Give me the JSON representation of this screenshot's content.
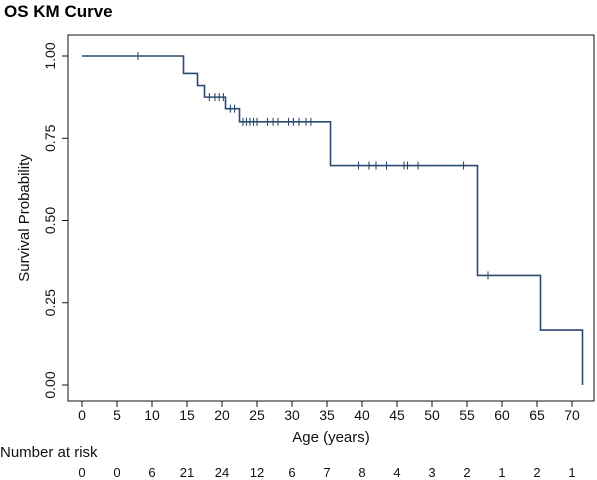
{
  "chart_data": {
    "type": "line",
    "title": "OS KM Curve",
    "xlabel": "Age (years)",
    "ylabel": "Survival Probability",
    "xlim": [
      0,
      72
    ],
    "ylim": [
      0,
      1
    ],
    "x_ticks": [
      0,
      5,
      10,
      15,
      20,
      25,
      30,
      35,
      40,
      45,
      50,
      55,
      60,
      65,
      70
    ],
    "y_ticks": [
      "0.00",
      "0.25",
      "0.50",
      "0.75",
      "1.00"
    ],
    "grid": false,
    "line_color": "#2b4a6f",
    "series": [
      {
        "steps": [
          {
            "x": 0,
            "y": 1.0
          },
          {
            "x": 14.5,
            "y": 0.947
          },
          {
            "x": 16.5,
            "y": 0.91
          },
          {
            "x": 17.5,
            "y": 0.875
          },
          {
            "x": 20.5,
            "y": 0.84
          },
          {
            "x": 22.5,
            "y": 0.8
          },
          {
            "x": 35.5,
            "y": 0.667
          },
          {
            "x": 56.5,
            "y": 0.333
          },
          {
            "x": 65.5,
            "y": 0.167
          },
          {
            "x": 71.5,
            "y": 0.0
          }
        ],
        "end_x": 71.5,
        "censored": [
          {
            "x": 8.0,
            "y": 1.0
          },
          {
            "x": 18.2,
            "y": 0.875
          },
          {
            "x": 19.0,
            "y": 0.875
          },
          {
            "x": 19.6,
            "y": 0.875
          },
          {
            "x": 20.2,
            "y": 0.875
          },
          {
            "x": 21.2,
            "y": 0.84
          },
          {
            "x": 21.8,
            "y": 0.84
          },
          {
            "x": 23.0,
            "y": 0.8
          },
          {
            "x": 23.5,
            "y": 0.8
          },
          {
            "x": 24.0,
            "y": 0.8
          },
          {
            "x": 24.5,
            "y": 0.8
          },
          {
            "x": 25.0,
            "y": 0.8
          },
          {
            "x": 26.5,
            "y": 0.8
          },
          {
            "x": 27.3,
            "y": 0.8
          },
          {
            "x": 28.0,
            "y": 0.8
          },
          {
            "x": 29.5,
            "y": 0.8
          },
          {
            "x": 30.2,
            "y": 0.8
          },
          {
            "x": 31.0,
            "y": 0.8
          },
          {
            "x": 32.0,
            "y": 0.8
          },
          {
            "x": 32.7,
            "y": 0.8
          },
          {
            "x": 39.5,
            "y": 0.667
          },
          {
            "x": 41.0,
            "y": 0.667
          },
          {
            "x": 42.0,
            "y": 0.667
          },
          {
            "x": 43.5,
            "y": 0.667
          },
          {
            "x": 46.0,
            "y": 0.667
          },
          {
            "x": 46.5,
            "y": 0.667
          },
          {
            "x": 48.0,
            "y": 0.667
          },
          {
            "x": 54.5,
            "y": 0.667
          },
          {
            "x": 58.0,
            "y": 0.333
          }
        ]
      }
    ],
    "risk_table": {
      "label": "Number at risk",
      "times": [
        0,
        5,
        10,
        15,
        20,
        25,
        30,
        35,
        40,
        45,
        50,
        55,
        60,
        65,
        70
      ],
      "counts": [
        0,
        0,
        6,
        21,
        24,
        12,
        6,
        7,
        8,
        4,
        3,
        2,
        1,
        2,
        1
      ]
    }
  }
}
